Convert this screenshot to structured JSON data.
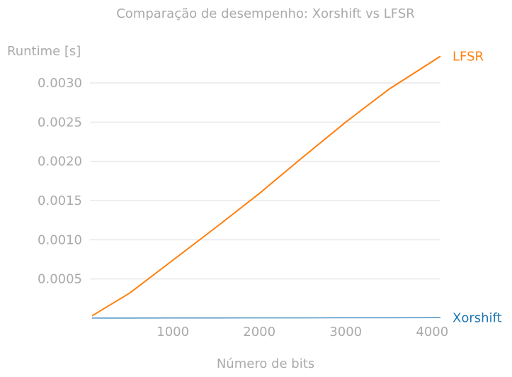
{
  "chart_data": {
    "type": "line",
    "title": "Comparação de desempenho: Xorshift vs LFSR",
    "xlabel": "Número de bits",
    "ylabel": "Runtime [s]",
    "xlim": [
      40,
      4096
    ],
    "ylim": [
      0,
      0.003
    ],
    "x_ticks": [
      1000,
      2000,
      3000,
      4000
    ],
    "x_tick_labels": [
      "1000",
      "2000",
      "3000",
      "4000"
    ],
    "y_ticks": [
      0.0005,
      0.001,
      0.0015,
      0.002,
      0.0025,
      0.003
    ],
    "y_tick_labels": [
      "0.0005",
      "0.0010",
      "0.0015",
      "0.0020",
      "0.0025",
      "0.0030"
    ],
    "grid": "horizontal",
    "legend": "direct labels at line ends",
    "series": [
      {
        "name": "LFSR",
        "color": "#ff7f0e",
        "x": [
          64,
          500,
          1000,
          1500,
          2000,
          2500,
          3000,
          3500,
          4096
        ],
        "y": [
          3e-05,
          0.00032,
          0.00074,
          0.00116,
          0.00159,
          0.00205,
          0.0025,
          0.00292,
          0.00334
        ]
      },
      {
        "name": "Xorshift",
        "color": "#1f77b4",
        "x": [
          64,
          500,
          1000,
          1500,
          2000,
          2500,
          3000,
          3500,
          4096
        ],
        "y": [
          1e-06,
          1e-06,
          2e-06,
          2e-06,
          3e-06,
          3e-06,
          4e-06,
          4e-06,
          5e-06
        ]
      }
    ]
  }
}
